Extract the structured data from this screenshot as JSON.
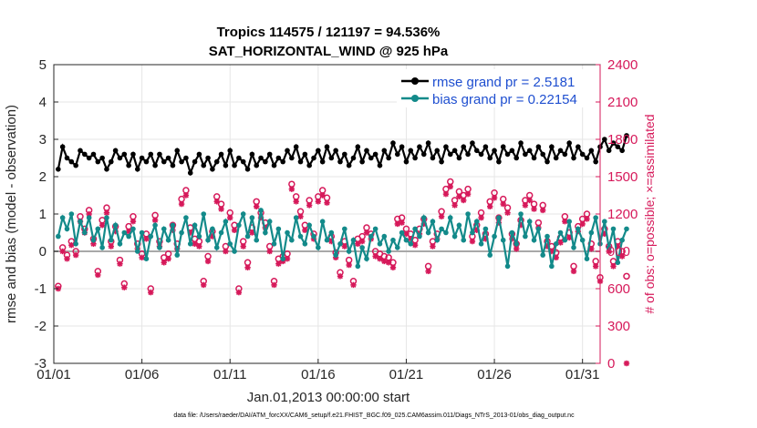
{
  "chart_data": {
    "type": "line",
    "title_line1": "Tropics 114575 / 121197 = 94.536%",
    "title_line2": "SAT_HORIZONTAL_WIND @ 925 hPa",
    "xlabel": "Jan.01,2013 00:00:00 start",
    "ylabel": "rmse and bias (model - observation)",
    "y2label": "# of obs: o=possible; ×=assimilated",
    "footnote": "data file: /Users/raeder/DAI/ATM_forcXX/CAM6_setup/f.e21.FHIST_BGC.f09_025.CAM6assim.011/Diags_NTrS_2013-01/obs_diag_output.nc",
    "ylim": [
      -3,
      5
    ],
    "y2lim": [
      0,
      2400
    ],
    "xlim": [
      0,
      31
    ],
    "x_ticks": [
      {
        "v": 0,
        "label": "01/01"
      },
      {
        "v": 5,
        "label": "01/06"
      },
      {
        "v": 10,
        "label": "01/11"
      },
      {
        "v": 15,
        "label": "01/16"
      },
      {
        "v": 20,
        "label": "01/21"
      },
      {
        "v": 25,
        "label": "01/26"
      },
      {
        "v": 30,
        "label": "01/31"
      }
    ],
    "y_ticks": [
      "-3",
      "-2",
      "-1",
      "0",
      "1",
      "2",
      "3",
      "4",
      "5"
    ],
    "y2_ticks": [
      "0",
      "300",
      "600",
      "900",
      "1200",
      "1500",
      "1800",
      "2100",
      "2400"
    ],
    "series": [
      {
        "name": "rmse",
        "legend": "rmse grand pr = 2.5181",
        "color": "#000000",
        "values": [
          2.2,
          2.8,
          2.5,
          2.4,
          2.3,
          2.7,
          2.6,
          2.5,
          2.6,
          2.4,
          2.5,
          2.2,
          2.4,
          2.7,
          2.5,
          2.6,
          2.3,
          2.6,
          2.2,
          2.5,
          2.4,
          2.6,
          2.3,
          2.6,
          2.4,
          2.5,
          2.3,
          2.7,
          2.4,
          2.5,
          2.1,
          2.4,
          2.6,
          2.3,
          2.5,
          2.2,
          2.4,
          2.6,
          2.3,
          2.7,
          2.3,
          2.5,
          2.4,
          2.2,
          2.6,
          2.3,
          2.5,
          2.4,
          2.6,
          2.3,
          2.5,
          2.4,
          2.7,
          2.5,
          2.8,
          2.4,
          2.6,
          2.3,
          2.5,
          2.7,
          2.4,
          2.8,
          2.5,
          2.7,
          2.4,
          2.6,
          2.3,
          2.5,
          2.8,
          2.4,
          2.7,
          2.5,
          2.6,
          2.3,
          2.7,
          2.5,
          2.9,
          2.6,
          2.8,
          2.4,
          2.7,
          2.5,
          2.8,
          2.6,
          2.9,
          2.5,
          2.7,
          2.4,
          2.8,
          2.6,
          2.7,
          2.5,
          2.8,
          2.6,
          2.9,
          2.7,
          2.6,
          2.8,
          2.5,
          2.7,
          2.4,
          2.8,
          2.6,
          2.7,
          2.5,
          2.9,
          2.6,
          2.7,
          2.5,
          2.8,
          2.6,
          2.4,
          2.8,
          2.5,
          2.7,
          2.6,
          2.9,
          2.5,
          2.8,
          2.6,
          2.5,
          2.7,
          2.4,
          2.8,
          3.0,
          2.7,
          2.9,
          2.8,
          2.7,
          3.1
        ]
      },
      {
        "name": "bias",
        "legend": "bias grand pr = 0.22154",
        "color": "#138a8a",
        "values": [
          0.4,
          0.9,
          0.6,
          1.0,
          0.2,
          0.8,
          0.5,
          0.9,
          0.3,
          0.6,
          0.1,
          0.9,
          0.3,
          0.7,
          0.2,
          0.5,
          0.4,
          0.6,
          0.0,
          0.5,
          -0.2,
          0.4,
          0.7,
          0.1,
          0.6,
          0.3,
          0.7,
          -0.1,
          0.5,
          0.9,
          0.2,
          0.7,
          0.4,
          1.0,
          0.3,
          0.6,
          0.1,
          0.5,
          0.8,
          0.2,
          0.0,
          0.7,
          1.0,
          0.4,
          0.9,
          0.3,
          1.1,
          0.5,
          0.8,
          0.2,
          0.6,
          -0.2,
          0.5,
          0.3,
          0.9,
          0.4,
          0.2,
          0.7,
          0.4,
          0.1,
          0.8,
          0.3,
          0.5,
          -0.1,
          0.2,
          0.6,
          0.0,
          0.3,
          -0.4,
          0.1,
          -0.2,
          0.4,
          0.6,
          0.2,
          0.4,
          0.0,
          0.3,
          0.1,
          0.5,
          0.3,
          0.2,
          0.6,
          0.4,
          0.9,
          0.5,
          0.8,
          0.3,
          0.6,
          0.5,
          0.9,
          0.4,
          0.7,
          0.3,
          1.0,
          0.5,
          0.8,
          0.2,
          0.6,
          -0.1,
          0.4,
          0.9,
          0.3,
          -0.4,
          0.5,
          0.2,
          1.0,
          0.4,
          0.8,
          0.3,
          0.6,
          -0.1,
          0.4,
          -0.4,
          0.2,
          0.5,
          0.3,
          0.8,
          0.1,
          0.6,
          0.3,
          -0.2,
          0.5,
          0.9,
          0.2,
          0.8,
          0.1,
          0.6,
          -0.3,
          0.3,
          0.6
        ]
      },
      {
        "name": "possible",
        "marker": "o",
        "color": "#d6195a",
        "values": [
          620,
          930,
          870,
          980,
          900,
          1180,
          1080,
          1230,
          1000,
          740,
          1150,
          1250,
          980,
          1100,
          830,
          640,
          1100,
          1180,
          960,
          880,
          1040,
          600,
          1190,
          980,
          850,
          880,
          1110,
          960,
          1320,
          1390,
          1090,
          1000,
          980,
          660,
          860,
          1060,
          1340,
          1280,
          940,
          1210,
          1110,
          600,
          980,
          810,
          1090,
          1300,
          1210,
          1130,
          940,
          660,
          840,
          860,
          880,
          1440,
          1340,
          1220,
          1110,
          1310,
          1040,
          1340,
          1390,
          1330,
          1020,
          890,
          730,
          980,
          830,
          660,
          1000,
          1020,
          1090,
          1040,
          900,
          880,
          860,
          850,
          810,
          1160,
          1170,
          1080,
          1040,
          990,
          1080,
          1160,
          780,
          980,
          1040,
          1220,
          1400,
          1460,
          1310,
          1380,
          1350,
          1400,
          1020,
          1110,
          1210,
          1040,
          1300,
          1370,
          1170,
          1320,
          1250,
          1040,
          960,
          1150,
          1310,
          1350,
          1280,
          1130,
          1270,
          980,
          940,
          890,
          1010,
          1180,
          1050,
          780,
          1100,
          1160,
          1200,
          960,
          820,
          690,
          1080,
          940,
          820,
          980,
          900,
          700
        ]
      },
      {
        "name": "assimilated",
        "marker": "x",
        "color": "#d6195a",
        "values": [
          600,
          900,
          840,
          950,
          870,
          1140,
          1050,
          1200,
          960,
          710,
          1110,
          1210,
          940,
          1060,
          800,
          610,
          1060,
          1140,
          920,
          850,
          1000,
          570,
          1150,
          940,
          810,
          840,
          1070,
          920,
          1280,
          1350,
          1050,
          960,
          940,
          630,
          820,
          1020,
          1300,
          1240,
          900,
          1170,
          1070,
          570,
          940,
          770,
          1050,
          1260,
          1170,
          1090,
          900,
          630,
          800,
          820,
          840,
          1400,
          1300,
          1180,
          1070,
          1270,
          1000,
          1300,
          1350,
          1290,
          980,
          850,
          700,
          940,
          790,
          630,
          960,
          980,
          1050,
          1000,
          860,
          840,
          820,
          810,
          770,
          1120,
          1130,
          1040,
          1000,
          950,
          1040,
          1120,
          740,
          940,
          1000,
          1180,
          1360,
          1420,
          1270,
          1340,
          1310,
          1360,
          980,
          1070,
          1170,
          1000,
          1260,
          1330,
          1130,
          1280,
          1210,
          1000,
          920,
          1110,
          1270,
          1310,
          1240,
          1090,
          1230,
          940,
          900,
          850,
          970,
          1140,
          1010,
          740,
          1060,
          1120,
          1160,
          920,
          780,
          660,
          1040,
          900,
          780,
          940,
          860,
          0
        ]
      }
    ]
  }
}
